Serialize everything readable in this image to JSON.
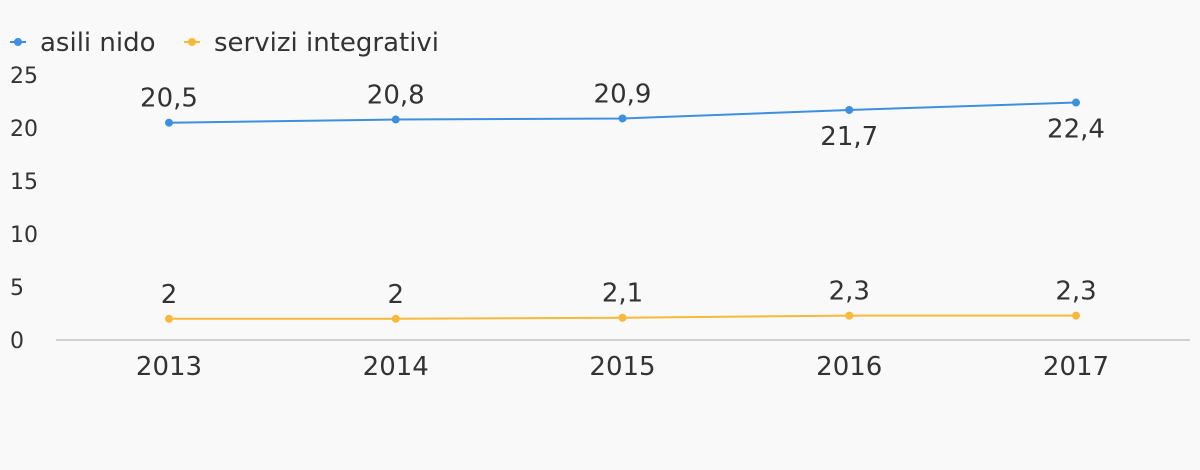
{
  "chart_data": {
    "type": "line",
    "categories": [
      "2013",
      "2014",
      "2015",
      "2016",
      "2017"
    ],
    "series": [
      {
        "name": "asili nido",
        "color": "#3d8fe0",
        "values": [
          20.5,
          20.8,
          20.9,
          21.7,
          22.4
        ],
        "labels": [
          "20,5",
          "20,8",
          "20,9",
          "21,7",
          "22,4"
        ],
        "label_positions": [
          "above",
          "above",
          "above",
          "below",
          "below"
        ]
      },
      {
        "name": "servizi integrativi",
        "color": "#f8b93a",
        "values": [
          2,
          2,
          2.1,
          2.3,
          2.3
        ],
        "labels": [
          "2",
          "2",
          "2,1",
          "2,3",
          "2,3"
        ],
        "label_positions": [
          "above",
          "above",
          "above",
          "above",
          "above"
        ]
      }
    ],
    "y_ticks": [
      "0",
      "5",
      "10",
      "15",
      "20",
      "25"
    ],
    "ylim": [
      0,
      25
    ],
    "title": "",
    "xlabel": "",
    "ylabel": "",
    "grid": false,
    "legend_position": "top-left"
  }
}
